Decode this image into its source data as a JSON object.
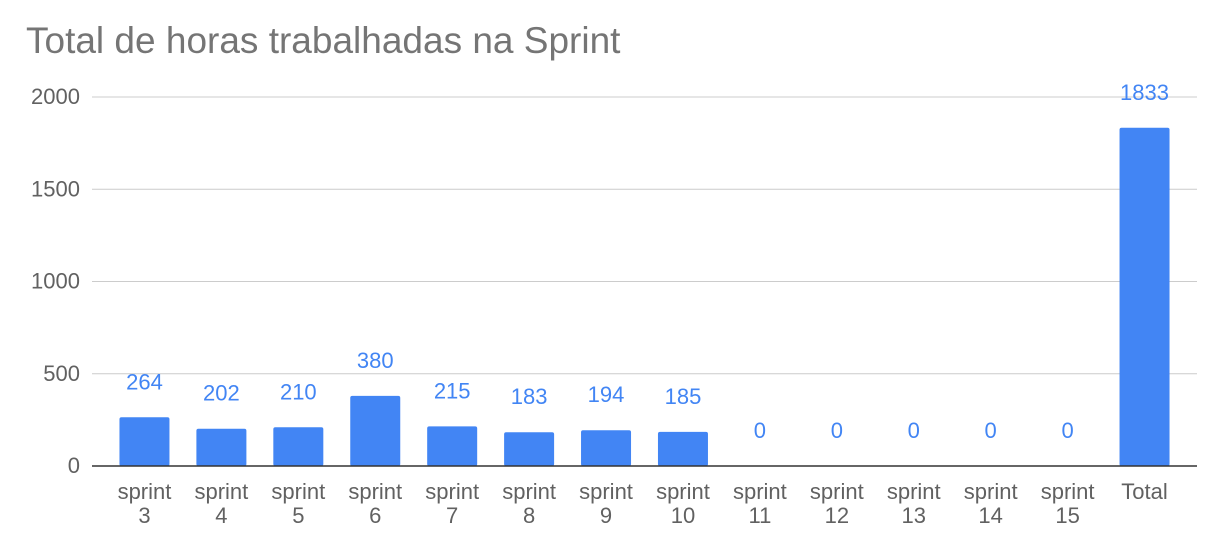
{
  "chart_data": {
    "type": "bar",
    "title": "Total de horas trabalhadas na Sprint",
    "xlabel": "",
    "ylabel": "",
    "categories": [
      [
        "sprint",
        "3"
      ],
      [
        "sprint",
        "4"
      ],
      [
        "sprint",
        "5"
      ],
      [
        "sprint",
        "6"
      ],
      [
        "sprint",
        "7"
      ],
      [
        "sprint",
        "8"
      ],
      [
        "sprint",
        "9"
      ],
      [
        "sprint",
        "10"
      ],
      [
        "sprint",
        "11"
      ],
      [
        "sprint",
        "12"
      ],
      [
        "sprint",
        "13"
      ],
      [
        "sprint",
        "14"
      ],
      [
        "sprint",
        "15"
      ],
      [
        "Total"
      ]
    ],
    "values": [
      264,
      202,
      210,
      380,
      215,
      183,
      194,
      185,
      0,
      0,
      0,
      0,
      0,
      1833
    ],
    "data_labels": [
      "264",
      "202",
      "210",
      "380",
      "215",
      "183",
      "194",
      "185",
      "0",
      "0",
      "0",
      "0",
      "0",
      "1833"
    ],
    "yticks": [
      0,
      500,
      1000,
      1500,
      2000
    ],
    "ytick_labels": [
      "0",
      "500",
      "1000",
      "1500",
      "2000"
    ],
    "ylim": [
      0,
      2000
    ],
    "grid": true,
    "legend": "none",
    "colors": {
      "bar": "#4285f4",
      "data_label": "#4285f4",
      "title": "#757575",
      "axis_text": "#616161",
      "grid": "#cccccc",
      "baseline": "#333333"
    }
  }
}
